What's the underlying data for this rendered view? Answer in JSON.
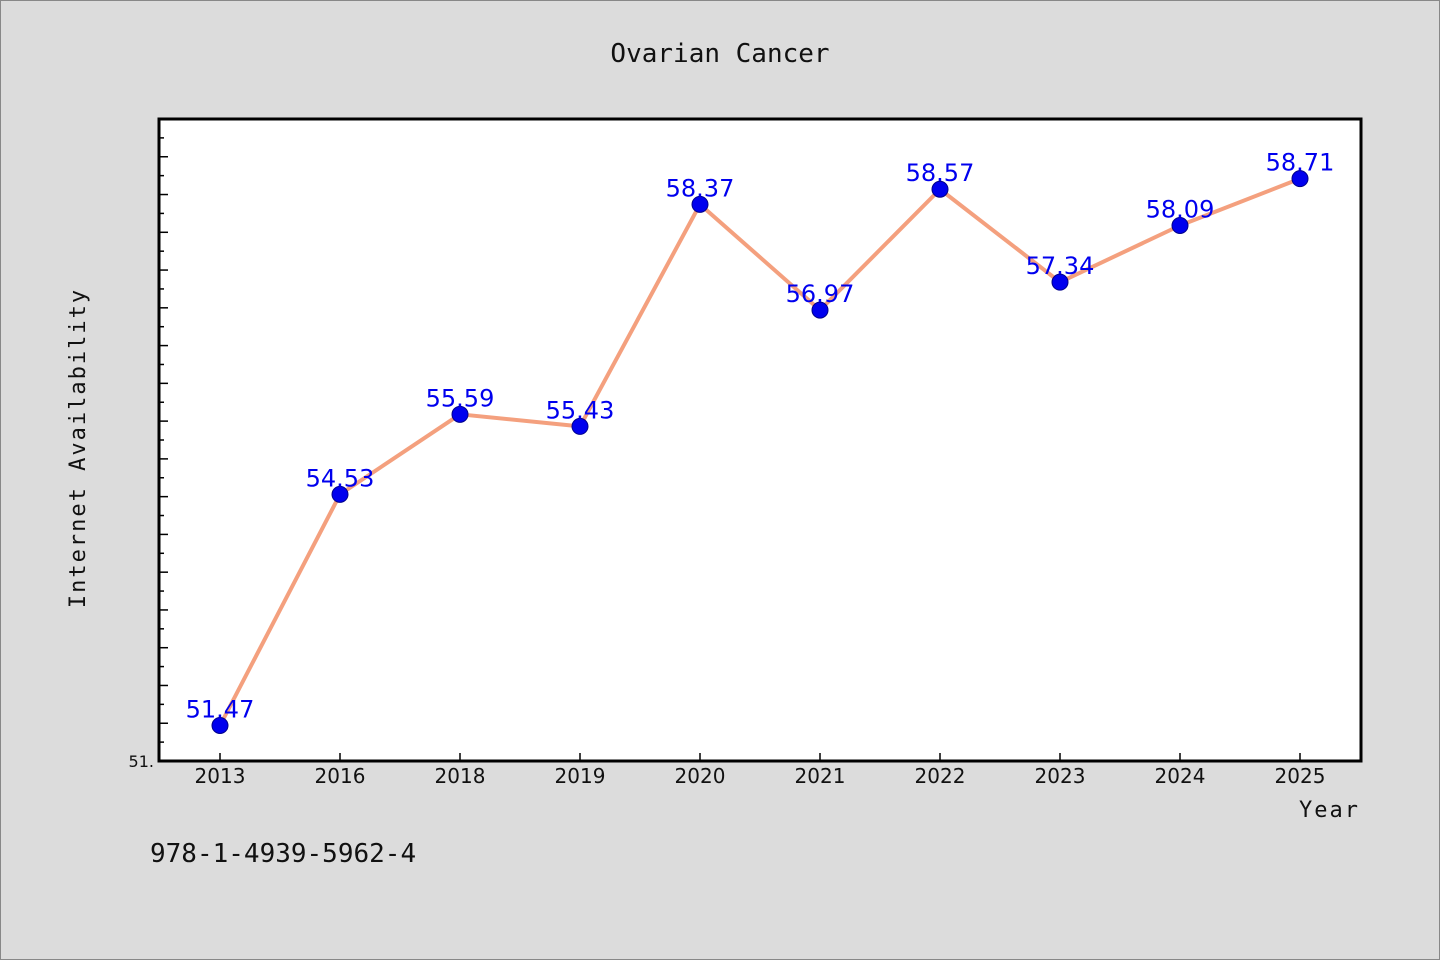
{
  "chart_data": {
    "type": "line",
    "title": "Ovarian Cancer",
    "xlabel": "Year",
    "ylabel": "Internet Availability",
    "categories": [
      "2013",
      "2016",
      "2018",
      "2019",
      "2020",
      "2021",
      "2022",
      "2023",
      "2024",
      "2025"
    ],
    "values": [
      51.47,
      54.53,
      55.59,
      55.43,
      58.37,
      56.97,
      58.57,
      57.34,
      58.09,
      58.71
    ],
    "data_labels": [
      "51.47",
      "54.53",
      "55.59",
      "55.43",
      "58.37",
      "56.97",
      "58.57",
      "57.34",
      "58.09",
      "58.71"
    ],
    "ylim": [
      51.0,
      59.5
    ],
    "y_min_label": "51.",
    "grid": false,
    "line_color": "#f4a07e",
    "marker_color": "#0000ee",
    "label_color": "#0000ee"
  },
  "footer": {
    "isbn": "978-1-4939-5962-4"
  }
}
